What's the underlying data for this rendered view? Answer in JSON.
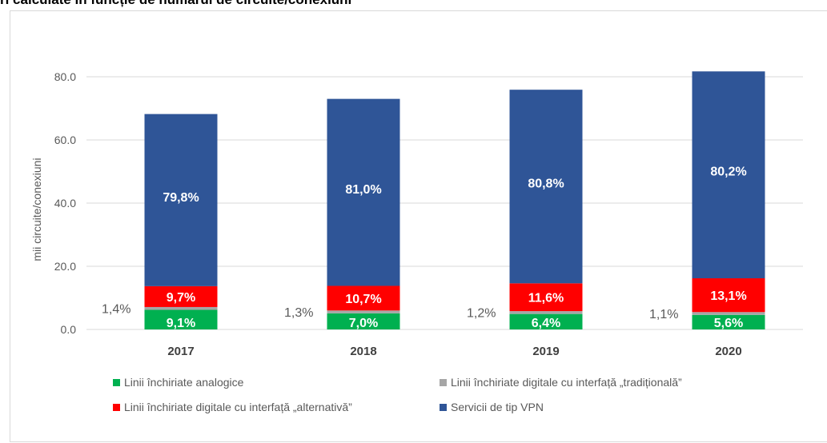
{
  "page": {
    "title": "ri calculate în funcție de numărul de circuite/conexiuni"
  },
  "chart_data": {
    "type": "bar",
    "stacked": true,
    "categories": [
      "2017",
      "2018",
      "2019",
      "2020"
    ],
    "ylabel": "mii circuite/conexiuni",
    "xlabel": "",
    "ylim": [
      0,
      80
    ],
    "yticks": [
      "0.0",
      "20.0",
      "40.0",
      "60.0",
      "80.0"
    ],
    "ytick_values": [
      0,
      20,
      40,
      60,
      80
    ],
    "grid": true,
    "legend_position": "bottom",
    "series": [
      {
        "name": "Linii închiriate analogice",
        "color": "#00b050",
        "values": [
          6.2,
          5.1,
          4.9,
          4.6
        ],
        "labels": [
          "9,1%",
          "7,0%",
          "6,4%",
          "5,6%"
        ],
        "label_position": "inside"
      },
      {
        "name": "Linii închiriate digitale cu interfață „tradițională”",
        "color": "#a6a6a6",
        "values": [
          0.9,
          0.9,
          0.9,
          0.9
        ],
        "labels": [
          "1,4%",
          "1,3%",
          "1,2%",
          "1,1%"
        ],
        "label_position": "left"
      },
      {
        "name": "Linii închiriate digitale cu interfață „alternativă”",
        "color": "#ff0000",
        "values": [
          6.6,
          7.8,
          8.8,
          10.7
        ],
        "labels": [
          "9,7%",
          "10,7%",
          "11,6%",
          "13,1%"
        ],
        "label_position": "inside"
      },
      {
        "name": "Servicii de tip VPN",
        "color": "#2f5597",
        "values": [
          54.5,
          59.2,
          61.3,
          65.5
        ],
        "labels": [
          "79,8%",
          "81,0%",
          "80,8%",
          "80,2%"
        ],
        "label_position": "inside"
      }
    ]
  }
}
